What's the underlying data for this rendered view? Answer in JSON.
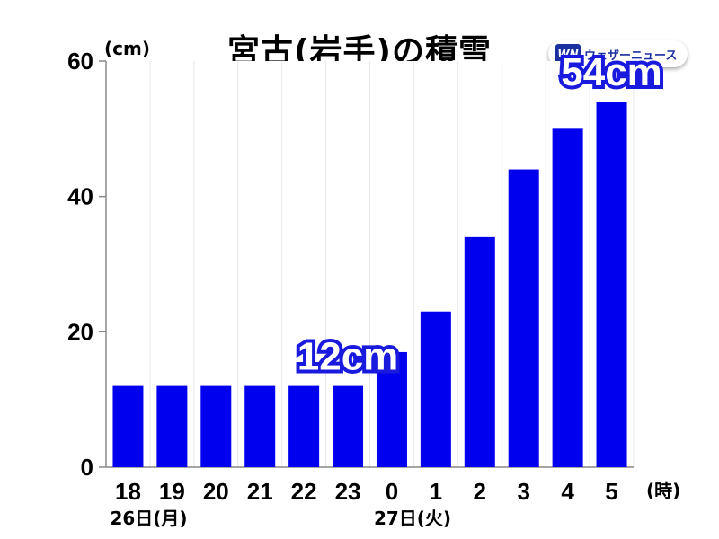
{
  "chart_data": {
    "type": "bar",
    "title": "宮古(岩手)の積雪",
    "ylabel": "(cm)",
    "xunit": "(時)",
    "categories": [
      "18",
      "19",
      "20",
      "21",
      "22",
      "23",
      "0",
      "1",
      "2",
      "3",
      "4",
      "5"
    ],
    "values": [
      12,
      12,
      12,
      12,
      12,
      12,
      17,
      23,
      34,
      44,
      50,
      54
    ],
    "ylim": [
      0,
      60
    ],
    "yticks": [
      0,
      20,
      40,
      60
    ],
    "date_labels": [
      {
        "category_index": 0,
        "text": "26日(月)"
      },
      {
        "category_index": 6,
        "text": "27日(火)"
      }
    ],
    "annotations": [
      {
        "category_index": 5,
        "value": 12,
        "text": "12cm"
      },
      {
        "category_index": 11,
        "value": 54,
        "text": "54cm"
      }
    ],
    "bar_color": "#0000ee",
    "grid": "vertical"
  },
  "logo": {
    "mark": "WN",
    "text": "ウェザーニュース"
  }
}
